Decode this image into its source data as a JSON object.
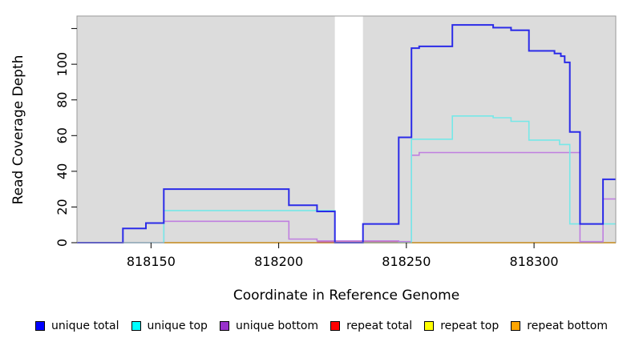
{
  "chart_data": {
    "type": "line",
    "subtype": "step-coverage",
    "title": "",
    "xlabel": "Coordinate in Reference Genome",
    "ylabel": "Read Coverage Depth",
    "xlim": [
      818121,
      818332
    ],
    "ylim": [
      0,
      127
    ],
    "x_ticks": [
      818150,
      818200,
      818250,
      818300
    ],
    "y_ticks": [
      0,
      20,
      40,
      60,
      80,
      100,
      120
    ],
    "y_tick_labels": [
      "0",
      "20",
      "40",
      "60",
      "80",
      "100",
      ""
    ],
    "grid": false,
    "legend_position": "bottom",
    "plot_bg_color": "#DCDCDC",
    "plot_border_color": "#9A9A9A",
    "axis_color": "#000000",
    "gap_band": {
      "from": 818222,
      "to": 818233,
      "color": "#FFFFFF"
    },
    "draw_order": [
      "repeat bottom",
      "repeat total",
      "repeat top",
      "unique bottom",
      "unique top",
      "unique total"
    ],
    "series": [
      {
        "name": "unique total",
        "legend_color": "#0000FF",
        "line_color": "#2B2BE8",
        "line_width": 2,
        "end": 818332,
        "points": [
          [
            818121,
            0
          ],
          [
            818139,
            8
          ],
          [
            818148,
            11
          ],
          [
            818155,
            30
          ],
          [
            818204,
            21
          ],
          [
            818215,
            17.5
          ],
          [
            818222,
            0
          ],
          [
            818233,
            10.5
          ],
          [
            818247,
            59
          ],
          [
            818252,
            109
          ],
          [
            818255,
            110
          ],
          [
            818268,
            122
          ],
          [
            818284,
            120.5
          ],
          [
            818291,
            119
          ],
          [
            818298,
            107.5
          ],
          [
            818308,
            106
          ],
          [
            818310.5,
            104.5
          ],
          [
            818312,
            101
          ],
          [
            818314,
            62
          ],
          [
            818318,
            10.5
          ],
          [
            818327,
            35.5
          ]
        ]
      },
      {
        "name": "unique top",
        "legend_color": "#00FFFF",
        "line_color": "#76E8E8",
        "line_width": 1.6,
        "end": 818332,
        "points": [
          [
            818121,
            0
          ],
          [
            818155,
            18
          ],
          [
            818222,
            0
          ],
          [
            818252,
            58
          ],
          [
            818268,
            71
          ],
          [
            818284,
            70
          ],
          [
            818291,
            68
          ],
          [
            818298,
            57.5
          ],
          [
            818310,
            55
          ],
          [
            818314,
            10.5
          ]
        ]
      },
      {
        "name": "unique bottom",
        "legend_color": "#9932CC",
        "line_color": "#BF7FE0",
        "line_width": 1.6,
        "end": 818332,
        "points": [
          [
            818121,
            0
          ],
          [
            818155,
            12
          ],
          [
            818204,
            2
          ],
          [
            818215,
            1
          ],
          [
            818247,
            0.6
          ],
          [
            818252,
            49
          ],
          [
            818255,
            50.5
          ],
          [
            818318,
            0.6
          ],
          [
            818327,
            24.5
          ]
        ]
      },
      {
        "name": "repeat total",
        "legend_color": "#FF0000",
        "line_color": "#D84055",
        "line_width": 1.4,
        "end": 818252,
        "points": [
          [
            818215,
            0.3
          ]
        ]
      },
      {
        "name": "repeat top",
        "legend_color": "#FFFF00",
        "line_color": "#FFFF00",
        "line_width": 1.4,
        "end": 818332,
        "points": []
      },
      {
        "name": "repeat bottom",
        "legend_color": "#FFA500",
        "line_color": "#FFA500",
        "line_width": 2,
        "end": 818332,
        "points": [
          [
            818155,
            0
          ]
        ]
      }
    ]
  }
}
